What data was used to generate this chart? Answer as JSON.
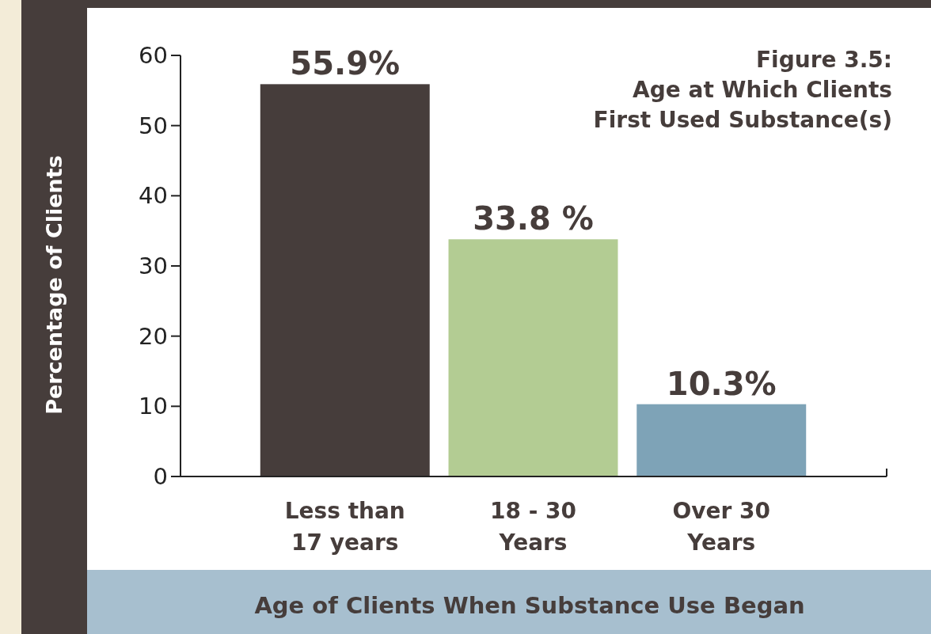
{
  "chart_data": {
    "type": "bar",
    "title": "Figure 3.5:\nAge at Which Clients\nFirst Used Substance(s)",
    "xlabel": "Age of Clients When Substance Use Began",
    "ylabel": "Percentage of Clients",
    "categories": [
      "Less than\n17 years",
      "18 - 30\nYears",
      "Over 30\nYears"
    ],
    "values": [
      55.9,
      33.8,
      10.3
    ],
    "colors": [
      "#463d3b",
      "#b3cc93",
      "#7ea3b7"
    ],
    "value_labels": [
      "55.9%",
      "33.8 %",
      "10.3%"
    ],
    "ylim": [
      0,
      60
    ],
    "yticks": [
      0,
      10,
      20,
      30,
      40,
      50,
      60
    ],
    "grid": false
  }
}
